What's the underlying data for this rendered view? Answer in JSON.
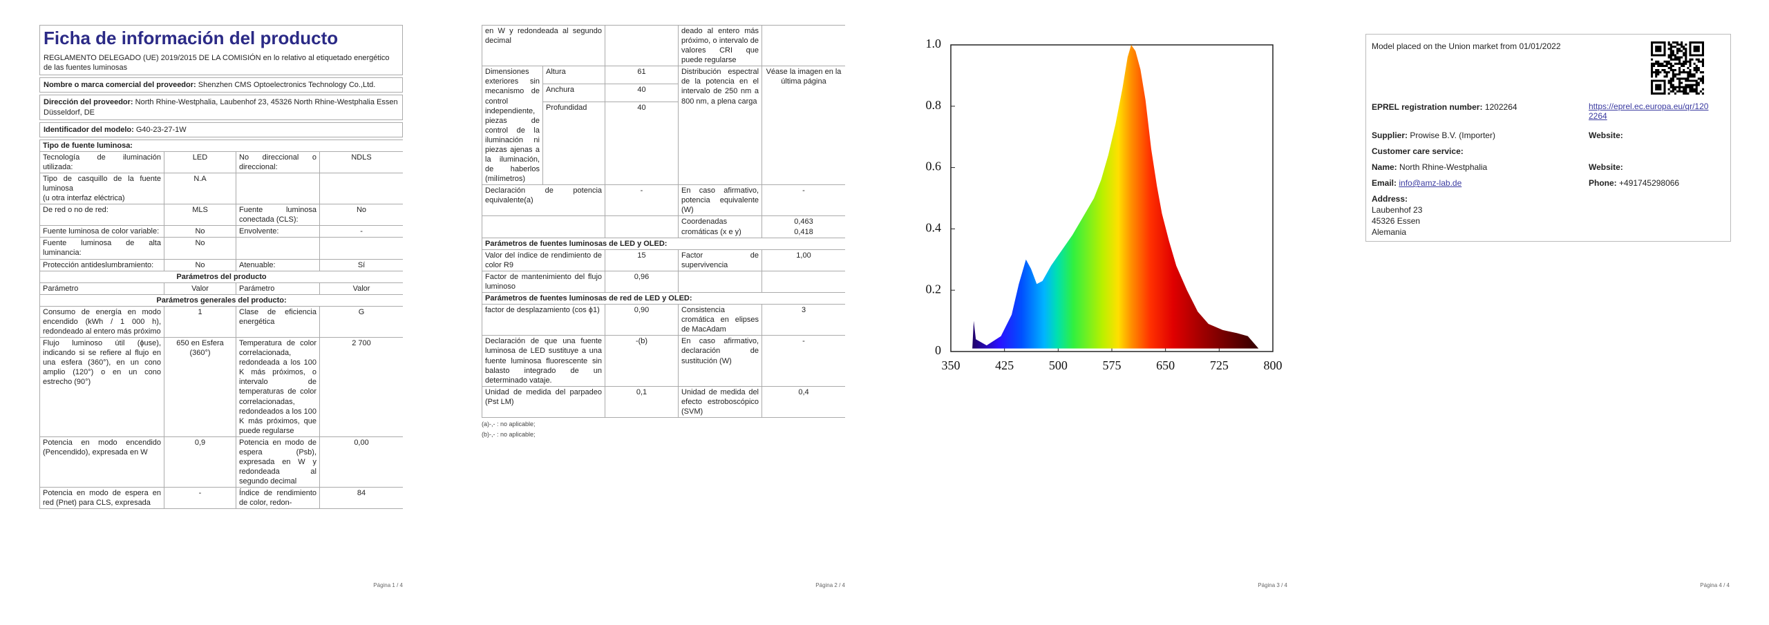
{
  "page1": {
    "title": "Ficha de información del producto",
    "regulation": "REGLAMENTO DELEGADO (UE) 2019/2015 DE LA COMISIÓN en lo relativo al etiquetado energético de las fuentes luminosas",
    "supplier_fields": [
      {
        "label": "Nombre o marca comercial del proveedor:",
        "value": "Shenzhen CMS Optoelectronics Technology Co.,Ltd."
      },
      {
        "label": "Dirección del proveedor:",
        "value": "North Rhine-Westphalia, Laubenhof 23, 45326 North Rhine-Westphalia Essen Düsseldorf, DE"
      },
      {
        "label": "Identificador del modelo:",
        "value": "G40-23-27-1W"
      }
    ],
    "rows": [
      {
        "heading": "Tipo de fuente luminosa:"
      },
      [
        "Tecnología de iluminación utilizada:",
        "LED",
        "No direccional o direccional:",
        "NDLS"
      ],
      [
        "Tipo de casquillo de la fuente luminosa\n(u otra interfaz eléctrica)",
        "N.A",
        null,
        null
      ],
      [
        "De red o no de red:",
        "MLS",
        "Fuente luminosa conectada (CLS):",
        "No"
      ],
      [
        "Fuente luminosa de color variable:",
        "No",
        "Envolvente:",
        "-"
      ],
      [
        "Fuente luminosa de alta luminancia:",
        "No",
        null,
        null
      ],
      [
        "Protección antideslumbramiento:",
        "No",
        "Atenuable:",
        "Sí"
      ],
      {
        "section": "Parámetros del producto"
      },
      [
        "Parámetro",
        "Valor",
        "Parámetro",
        "Valor"
      ],
      {
        "section": "Parámetros generales del producto:"
      },
      [
        "Consumo de energía en modo encendido (kWh / 1 000 h), redondeado al entero más próximo",
        "1",
        "Clase de eficiencia energética",
        "G"
      ],
      [
        "Flujo luminoso útil (ϕuse), indicando si se refiere al flujo en una esfera (360°), en un cono amplio (120°) o en un cono estrecho (90°)",
        "650 en Esfera (360°)",
        "Temperatura de color correlacionada, redondeada a los 100 K más próximos, o intervalo de temperaturas de color correlacionadas, redondeados a los 100 K más próximos, que puede regularse",
        "2 700"
      ],
      [
        "Potencia en modo encendido (Pencendido), expresada en W",
        "0,9",
        "Potencia en modo de espera (Psb), expresada en W y redondeada al segundo decimal",
        "0,00"
      ],
      [
        "Potencia en modo de espera en red (Pnet) para CLS, expresada",
        "-",
        "Índice de rendimiento de color, redon-",
        "84"
      ]
    ],
    "footer": "Página 1 / 4"
  },
  "page2": {
    "rows": [
      [
        "en W y redondeada al segundo decimal",
        null,
        "deado al entero más próximo, o intervalo de valores CRI que puede regularse",
        null
      ],
      {
        "label": "Dimensiones exteriores sin mecanismo de control independiente, piezas de control de la iluminación ni piezas ajenas a la iluminación, de haberlos (milímetros)",
        "dims": [
          [
            "Altura",
            "61"
          ],
          [
            "Anchura",
            "40"
          ],
          [
            "Profundidad",
            "40"
          ]
        ],
        "label2": "Distribución espectral de la potencia en el intervalo de 250 nm a 800 nm, a plena carga",
        "value2": "Véase la imagen en la última página"
      },
      [
        "Declaración de potencia equivalente(a)",
        "-",
        "En caso afirmativo, potencia equivalente (W)",
        "-"
      ],
      [
        null,
        null,
        "Coordenadas cromáticas (x e y)",
        "0,463\n0,418"
      ],
      {
        "heading": "Parámetros de fuentes luminosas de LED y OLED:"
      },
      [
        "Valor del índice de rendimiento de color R9",
        "15",
        "Factor de supervivencia",
        "1,00"
      ],
      [
        "Factor de mantenimiento del flujo luminoso",
        "0,96",
        null,
        null
      ],
      {
        "heading": "Parámetros de fuentes luminosas de red de LED y OLED:"
      },
      [
        "factor de desplazamiento (cos ϕ1)",
        "0,90",
        "Consistencia cromática en elipses de MacAdam",
        "3"
      ],
      [
        "Declaración de que una fuente luminosa de LED sustituye a una fuente luminosa fluorescente sin balasto integrado de un determinado vataje.",
        "-(b)",
        "En caso afirmativo, declaración de sustitución (W)",
        "-"
      ],
      [
        "Unidad de medida del parpadeo (Pst LM)",
        "0,1",
        "Unidad de medida del efecto estroboscópico (SVM)",
        "0,4"
      ]
    ],
    "footnotes": [
      "(a)-,- : no aplicable;",
      "(b)-,- : no aplicable;"
    ],
    "footer": "Página 2 / 4"
  },
  "page3": {
    "footer": "Página 3 / 4"
  },
  "page4": {
    "market": "Model placed on the Union market from 01/01/2022",
    "eprel": {
      "label": "EPREL registration number:",
      "value": "1202264",
      "link": "https://eprel.ec.europa.eu/qr/1202264"
    },
    "supplier": {
      "label": "Supplier:",
      "value": "Prowise B.V. (Importer)"
    },
    "website1": "Website:",
    "customer_care": "Customer care service:",
    "name": {
      "label": "Name:",
      "value": "North Rhine-Westphalia"
    },
    "website2": "Website:",
    "email": {
      "label": "Email:",
      "value": "info@amz-lab.de"
    },
    "phone": {
      "label": "Phone:",
      "value": "+491745298066"
    },
    "address": {
      "label": "Address:",
      "lines": [
        "Laubenhof 23",
        "45326 Essen",
        "Alemania"
      ]
    },
    "footer": "Página 4 / 4"
  },
  "chart_data": {
    "type": "area",
    "x": [
      380,
      382,
      385,
      400,
      420,
      435,
      445,
      455,
      462,
      470,
      478,
      490,
      505,
      520,
      535,
      550,
      560,
      570,
      580,
      590,
      597,
      602,
      608,
      615,
      622,
      630,
      638,
      645,
      655,
      665,
      680,
      695,
      710,
      730,
      750,
      765,
      780
    ],
    "values": [
      0.01,
      0.1,
      0.04,
      0.02,
      0.05,
      0.12,
      0.22,
      0.3,
      0.27,
      0.22,
      0.23,
      0.28,
      0.33,
      0.38,
      0.44,
      0.5,
      0.56,
      0.64,
      0.74,
      0.86,
      0.96,
      1.0,
      0.98,
      0.92,
      0.82,
      0.66,
      0.54,
      0.45,
      0.36,
      0.28,
      0.2,
      0.13,
      0.09,
      0.07,
      0.06,
      0.05,
      0.01
    ],
    "xlim": [
      350,
      800
    ],
    "ylim": [
      0,
      1
    ],
    "xticks": [
      350,
      425,
      500,
      575,
      650,
      725,
      800
    ],
    "yticks": [
      0,
      0.2,
      0.4,
      0.6,
      0.8,
      {
        "value": 1,
        "label": "1.0"
      }
    ],
    "fill": "spectrum"
  }
}
